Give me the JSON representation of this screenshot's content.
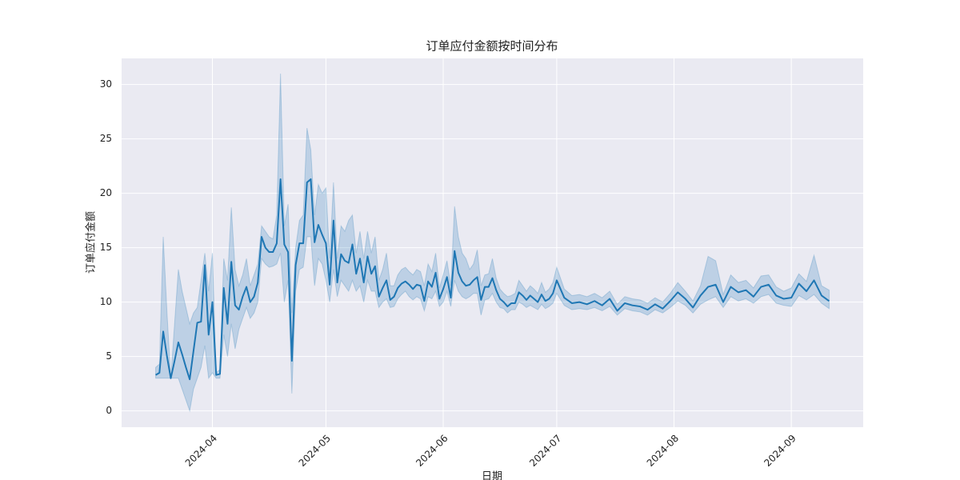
{
  "chart_data": {
    "type": "line",
    "title": "订单应付金额按时间分布",
    "xlabel": "日期",
    "ylabel": "订单应付金额",
    "x": [
      "2024-03-17",
      "2024-03-18",
      "2024-03-19",
      "2024-03-20",
      "2024-03-21",
      "2024-03-22",
      "2024-03-23",
      "2024-03-24",
      "2024-03-25",
      "2024-03-26",
      "2024-03-27",
      "2024-03-28",
      "2024-03-29",
      "2024-03-30",
      "2024-03-31",
      "2024-04-01",
      "2024-04-02",
      "2024-04-03",
      "2024-04-04",
      "2024-04-05",
      "2024-04-06",
      "2024-04-07",
      "2024-04-08",
      "2024-04-09",
      "2024-04-10",
      "2024-04-11",
      "2024-04-12",
      "2024-04-13",
      "2024-04-14",
      "2024-04-15",
      "2024-04-16",
      "2024-04-17",
      "2024-04-18",
      "2024-04-19",
      "2024-04-20",
      "2024-04-21",
      "2024-04-22",
      "2024-04-23",
      "2024-04-24",
      "2024-04-25",
      "2024-04-26",
      "2024-04-27",
      "2024-04-28",
      "2024-04-29",
      "2024-04-30",
      "2024-05-01",
      "2024-05-02",
      "2024-05-03",
      "2024-05-04",
      "2024-05-05",
      "2024-05-06",
      "2024-05-07",
      "2024-05-08",
      "2024-05-09",
      "2024-05-10",
      "2024-05-11",
      "2024-05-12",
      "2024-05-13",
      "2024-05-14",
      "2024-05-15",
      "2024-05-16",
      "2024-05-17",
      "2024-05-18",
      "2024-05-19",
      "2024-05-20",
      "2024-05-21",
      "2024-05-22",
      "2024-05-23",
      "2024-05-24",
      "2024-05-25",
      "2024-05-26",
      "2024-05-27",
      "2024-05-28",
      "2024-05-29",
      "2024-05-30",
      "2024-05-31",
      "2024-06-01",
      "2024-06-02",
      "2024-06-03",
      "2024-06-04",
      "2024-06-05",
      "2024-06-06",
      "2024-06-07",
      "2024-06-08",
      "2024-06-09",
      "2024-06-10",
      "2024-06-11",
      "2024-06-12",
      "2024-06-13",
      "2024-06-14",
      "2024-06-15",
      "2024-06-16",
      "2024-06-17",
      "2024-06-18",
      "2024-06-19",
      "2024-06-20",
      "2024-06-21",
      "2024-06-22",
      "2024-06-23",
      "2024-06-24",
      "2024-06-25",
      "2024-06-26",
      "2024-06-27",
      "2024-06-28",
      "2024-06-29",
      "2024-06-30",
      "2024-07-01",
      "2024-07-03",
      "2024-07-05",
      "2024-07-07",
      "2024-07-09",
      "2024-07-11",
      "2024-07-13",
      "2024-07-15",
      "2024-07-17",
      "2024-07-19",
      "2024-07-21",
      "2024-07-23",
      "2024-07-25",
      "2024-07-27",
      "2024-07-29",
      "2024-07-31",
      "2024-08-02",
      "2024-08-04",
      "2024-08-06",
      "2024-08-08",
      "2024-08-10",
      "2024-08-12",
      "2024-08-14",
      "2024-08-16",
      "2024-08-18",
      "2024-08-20",
      "2024-08-22",
      "2024-08-24",
      "2024-08-26",
      "2024-08-28",
      "2024-08-30",
      "2024-09-01",
      "2024-09-03",
      "2024-09-05",
      "2024-09-07",
      "2024-09-09",
      "2024-09-11"
    ],
    "xlim": [
      "2024-03-08",
      "2024-09-20"
    ],
    "xticks": [
      {
        "value": "2024-04-01",
        "label": "2024-04"
      },
      {
        "value": "2024-05-01",
        "label": "2024-05"
      },
      {
        "value": "2024-06-01",
        "label": "2024-06"
      },
      {
        "value": "2024-07-01",
        "label": "2024-07"
      },
      {
        "value": "2024-08-01",
        "label": "2024-08"
      },
      {
        "value": "2024-09-01",
        "label": "2024-09"
      }
    ],
    "ylim": [
      -1.5,
      32.4
    ],
    "yticks": [
      0,
      5,
      10,
      15,
      20,
      25,
      30
    ],
    "grid": true,
    "series": [
      {
        "color": "#1f77b4",
        "values": [
          3.3,
          3.5,
          7.3,
          5.0,
          3.0,
          4.6,
          6.3,
          5.2,
          4.0,
          2.9,
          5.5,
          8.1,
          8.2,
          13.4,
          7.0,
          10.0,
          3.3,
          3.4,
          11.3,
          8.0,
          13.7,
          9.7,
          9.3,
          10.5,
          11.4,
          10.0,
          10.5,
          11.8,
          16.0,
          15.0,
          14.6,
          14.6,
          15.4,
          21.3,
          15.3,
          14.6,
          4.6,
          13.4,
          15.4,
          15.4,
          21.0,
          21.3,
          15.5,
          17.1,
          16.2,
          15.4,
          11.6,
          17.5,
          11.8,
          14.4,
          13.8,
          13.6,
          15.3,
          12.6,
          14.0,
          11.8,
          14.2,
          12.6,
          13.3,
          10.5,
          11.3,
          12.0,
          10.2,
          10.5,
          11.3,
          11.7,
          11.9,
          11.6,
          11.2,
          11.6,
          11.5,
          10.1,
          11.9,
          11.4,
          12.7,
          10.3,
          11.2,
          12.3,
          10.4,
          14.7,
          12.7,
          11.9,
          11.5,
          11.6,
          12.0,
          12.3,
          10.2,
          11.4,
          11.4,
          12.2,
          11.1,
          10.3,
          10.0,
          9.6,
          9.9,
          9.9,
          10.9,
          10.6,
          10.2,
          10.6,
          10.3,
          10.0,
          10.7,
          10.1,
          10.3,
          10.8,
          12.0,
          10.4,
          9.9,
          10.0,
          9.8,
          10.1,
          9.7,
          10.3,
          9.2,
          9.9,
          9.7,
          9.6,
          9.3,
          9.8,
          9.4,
          10.1,
          10.9,
          10.3,
          9.5,
          10.6,
          11.4,
          11.6,
          10.0,
          11.4,
          10.9,
          11.1,
          10.5,
          11.4,
          11.6,
          10.6,
          10.3,
          10.4,
          11.7,
          11.0,
          12.0,
          10.6,
          10.1
        ],
        "lower": [
          3,
          3,
          3,
          3,
          3,
          3,
          3,
          2,
          1,
          0,
          2,
          3,
          4,
          6,
          3,
          3.5,
          3,
          3,
          7,
          5,
          8,
          5.7,
          7.5,
          8.5,
          9.5,
          8.5,
          9,
          10,
          14,
          13.5,
          13.2,
          13.3,
          13.5,
          14.5,
          10,
          12,
          1.6,
          11,
          13,
          13.2,
          16,
          16,
          11.5,
          14,
          13.5,
          12,
          10,
          13,
          10.5,
          12,
          11.5,
          11,
          12,
          11,
          11.5,
          10,
          12,
          11,
          11,
          9.5,
          10,
          10.3,
          9.5,
          9.6,
          10.3,
          10.7,
          11,
          10.5,
          10.2,
          10.5,
          10.3,
          9.2,
          10.5,
          10.3,
          11,
          9.6,
          10,
          11,
          9.6,
          12,
          11,
          10.5,
          10.3,
          10.5,
          10.8,
          10.8,
          8.8,
          10.2,
          10.3,
          10.8,
          10,
          9.5,
          9.4,
          9,
          9.3,
          9.3,
          10,
          9.8,
          9.5,
          9.7,
          9.5,
          9.3,
          9.8,
          9.4,
          9.6,
          9.9,
          10.8,
          9.7,
          9.3,
          9.4,
          9.3,
          9.5,
          9.2,
          9.6,
          8.8,
          9.4,
          9.2,
          9.1,
          8.8,
          9.3,
          9,
          9.5,
          10.1,
          9.7,
          9,
          9.8,
          10.2,
          10.5,
          9.5,
          10.5,
          10.1,
          10.3,
          9.9,
          10.5,
          10.7,
          9.9,
          9.7,
          9.6,
          10.6,
          10.2,
          10.7,
          9.9,
          9.4
        ],
        "upper": [
          4,
          4.3,
          16,
          9,
          3,
          8,
          13,
          11,
          9.5,
          8,
          9,
          9.5,
          12,
          14.5,
          11,
          14.5,
          3.5,
          3.8,
          14,
          12,
          18.7,
          13,
          11.5,
          12.5,
          14,
          11.5,
          12.5,
          13.5,
          17,
          16.5,
          16,
          15.8,
          18,
          31,
          17,
          19,
          9,
          15,
          17.5,
          18,
          26,
          24,
          18,
          20.8,
          20,
          20.5,
          14,
          21,
          14,
          17,
          16.5,
          17.5,
          18,
          14.5,
          16.5,
          14,
          16.5,
          14.5,
          16,
          12,
          13,
          14.5,
          11.5,
          11.5,
          12.5,
          13,
          13.2,
          12.8,
          12.5,
          13,
          12.8,
          11.5,
          13.5,
          12.8,
          14.5,
          11.3,
          12.5,
          13.8,
          11.5,
          18.8,
          16,
          14.5,
          14,
          13,
          13.5,
          14.8,
          11.5,
          12.5,
          12.6,
          14,
          12.2,
          11.2,
          10.8,
          10.5,
          10.6,
          10.8,
          12,
          11.5,
          11,
          11.5,
          11.2,
          10.8,
          11.8,
          10.9,
          11.2,
          11.8,
          13.2,
          11.2,
          10.6,
          10.7,
          10.5,
          10.8,
          10.4,
          11,
          9.8,
          10.5,
          10.3,
          10.2,
          9.9,
          10.4,
          10,
          10.8,
          11.8,
          11,
          10.1,
          11.5,
          14.2,
          13.8,
          10.7,
          12.5,
          11.8,
          12,
          11.3,
          12.4,
          12.5,
          11.4,
          11,
          11.3,
          12.6,
          11.9,
          14.3,
          11.5,
          11.1
        ]
      }
    ]
  }
}
